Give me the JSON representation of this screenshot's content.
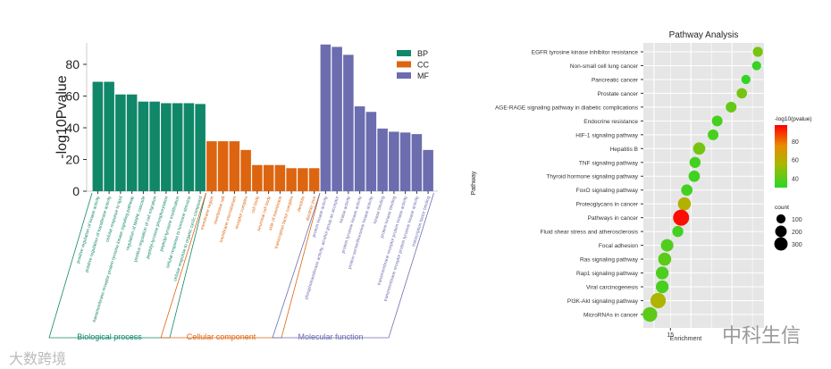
{
  "chart_data": [
    {
      "type": "bar",
      "ylabel": "-log10Pvalue",
      "ylim": [
        0,
        93
      ],
      "yticks": [
        0,
        20,
        40,
        60,
        80
      ],
      "legend": {
        "placement": "top-right",
        "entries": [
          {
            "name": "BP",
            "color": "#11876a"
          },
          {
            "name": "CC",
            "color": "#dd6510"
          },
          {
            "name": "MF",
            "color": "#6c6daf"
          }
        ]
      },
      "groups": [
        {
          "key": "BP",
          "label": "Biological process",
          "color": "#11876a",
          "categories": [
            "positive regulation of kinase activity",
            "positive regulation of transferase activity",
            "cellular response to lipid",
            "transmembrane receptor protein tyrosine kinase signaling pathway",
            "regulation of MAPK cascade",
            "positive regulation of cell migration",
            "peptidyl-tyrosine phosphorylation",
            "peptidyl-tyrosine modification",
            "cellular response to hormone stimulus",
            "cellular response to organic cyclic compound"
          ],
          "values": [
            69,
            69,
            61,
            61,
            56.5,
            56.5,
            55.5,
            55.5,
            55.5,
            55
          ]
        },
        {
          "key": "CC",
          "label": "Cellular component",
          "color": "#dd6510",
          "categories": [
            "membrane region",
            "membrane raft",
            "membrane microdomain",
            "receptor complex",
            "cell body",
            "neuronal cell body",
            "side of membrane",
            "transcription factor complex",
            "dendrite",
            "dendritic tree"
          ],
          "values": [
            31.5,
            31.5,
            31.5,
            26,
            16.5,
            16.5,
            16.5,
            14.5,
            14.5,
            14.5
          ]
        },
        {
          "key": "MF",
          "label": "Molecular function",
          "color": "#6c6daf",
          "categories": [
            "protein kinase activity",
            "phosphotransferase activity, alcohol group as acceptor",
            "kinase activity",
            "protein tyrosine kinase activity",
            "protein serine/threonine kinase activity",
            "kinase binding",
            "protein kinase binding",
            "transmembrane receptor protein kinase activity",
            "transmembrane receptor protein tyrosine kinase activity",
            "transcription factor binding"
          ],
          "values": [
            92.5,
            91,
            86,
            53.5,
            50,
            39.5,
            37.5,
            37,
            36,
            26
          ]
        }
      ]
    },
    {
      "type": "scatter",
      "title": "Pathway Analysis",
      "xlabel": "Enrichment",
      "ylabel": "Pathway",
      "xlim": [
        11.7,
        26.4
      ],
      "xticks": [
        15
      ],
      "color_legend": {
        "title": "-log10(pvalue)",
        "ticks": [
          40,
          60,
          80
        ],
        "range": [
          30,
          97
        ]
      },
      "size_legend": {
        "title": "count",
        "values": [
          100,
          200,
          300
        ]
      },
      "points": [
        {
          "pathway": "EGFR tyrosine kinase inhibitor resistance",
          "x": 25.65,
          "pvalue": 45,
          "count": 80
        },
        {
          "pathway": "Non-small cell lung cancer",
          "x": 25.5,
          "pvalue": 33,
          "count": 60
        },
        {
          "pathway": "Pancreatic cancer",
          "x": 24.2,
          "pvalue": 32,
          "count": 60
        },
        {
          "pathway": "Prostate cancer",
          "x": 23.7,
          "pvalue": 45,
          "count": 90
        },
        {
          "pathway": "AGE-RAGE signaling pathway in diabetic complications",
          "x": 22.4,
          "pvalue": 42,
          "count": 100
        },
        {
          "pathway": "Endocrine resistance",
          "x": 20.7,
          "pvalue": 36,
          "count": 100
        },
        {
          "pathway": "HIF-1 signaling pathway",
          "x": 20.2,
          "pvalue": 36,
          "count": 100
        },
        {
          "pathway": "Hepatitis B",
          "x": 18.5,
          "pvalue": 45,
          "count": 150
        },
        {
          "pathway": "TNF signaling pathway",
          "x": 18.0,
          "pvalue": 35,
          "count": 110
        },
        {
          "pathway": "Thyroid hormone signaling pathway",
          "x": 17.9,
          "pvalue": 35,
          "count": 120
        },
        {
          "pathway": "FoxO signaling pathway",
          "x": 17.0,
          "pvalue": 35,
          "count": 120
        },
        {
          "pathway": "Proteoglycans in cancer",
          "x": 16.7,
          "pvalue": 58,
          "count": 180
        },
        {
          "pathway": "Pathways in cancer",
          "x": 16.3,
          "pvalue": 95,
          "count": 320
        },
        {
          "pathway": "Fluid shear stress and atherosclerosis",
          "x": 15.9,
          "pvalue": 35,
          "count": 110
        },
        {
          "pathway": "Focal adhesion",
          "x": 14.6,
          "pvalue": 38,
          "count": 160
        },
        {
          "pathway": "Ras signaling pathway",
          "x": 14.3,
          "pvalue": 40,
          "count": 180
        },
        {
          "pathway": "Rap1 signaling pathway",
          "x": 14.0,
          "pvalue": 37,
          "count": 170
        },
        {
          "pathway": "Viral carcinogenesis",
          "x": 14.0,
          "pvalue": 36,
          "count": 170
        },
        {
          "pathway": "PI3K-Akt signaling pathway",
          "x": 13.5,
          "pvalue": 57,
          "count": 280
        },
        {
          "pathway": "MicroRNAs in cancer",
          "x": 12.5,
          "pvalue": 40,
          "count": 250
        }
      ]
    }
  ],
  "watermarks": {
    "left": "大数跨境",
    "right": "中科生信"
  }
}
